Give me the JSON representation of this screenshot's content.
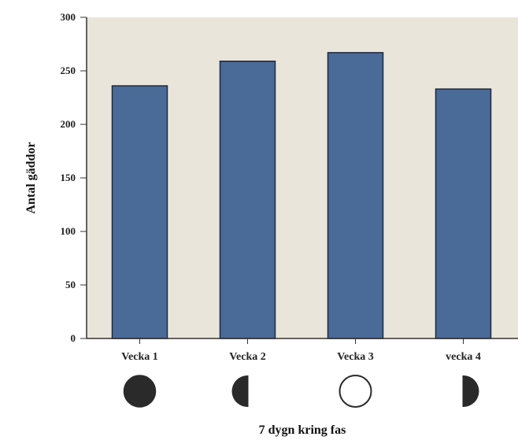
{
  "chart_data": {
    "type": "bar",
    "categories": [
      "Vecka 1",
      "Vecka 2",
      "Vecka 3",
      "vecka 4"
    ],
    "values": [
      236,
      259,
      267,
      233
    ],
    "xlabel": "7 dygn kring fas",
    "ylabel": "Antal gäddor",
    "ylim": [
      0,
      300
    ],
    "yticks": [
      "0",
      "50",
      "100",
      "150",
      "200",
      "250",
      "300"
    ],
    "grid": false,
    "moon_phases": [
      "new-moon-icon",
      "first-quarter-moon-icon",
      "full-moon-icon",
      "last-quarter-moon-icon"
    ],
    "colors": {
      "bar": "#4a6a98",
      "bar_edge": "#1d2a3d",
      "plot_background": "#e9e5da",
      "axis": "#333333",
      "moon_dark": "#2a2a2a"
    }
  }
}
